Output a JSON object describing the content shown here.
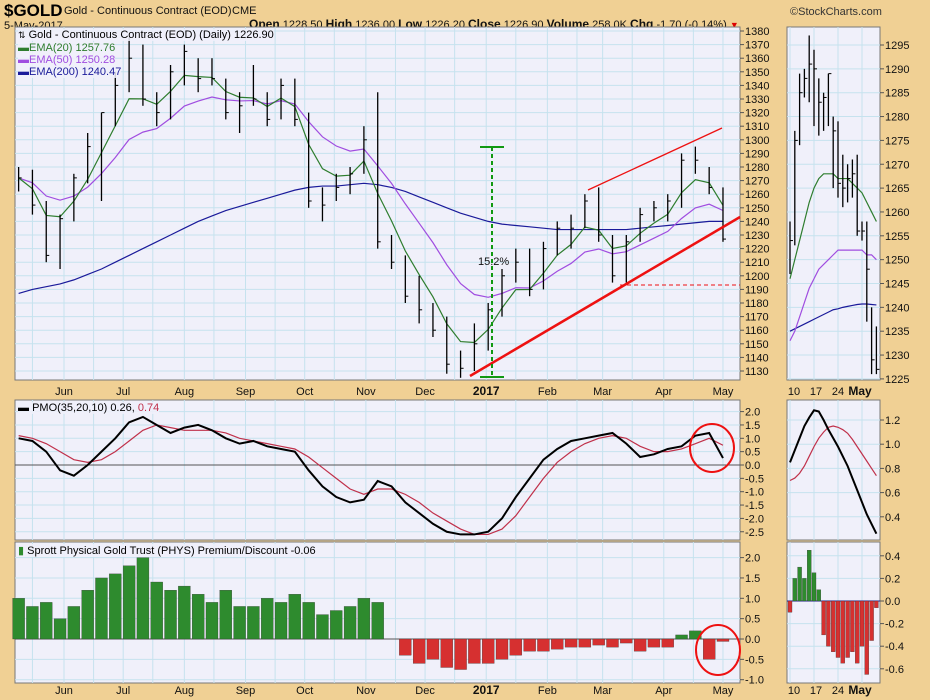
{
  "header": {
    "symbol": "$GOLD",
    "name": "Gold - Continuous Contract (EOD)",
    "exchange": "CME",
    "date": "5-May-2017",
    "brand": "©StockCharts.com",
    "open_label": "Open",
    "open": "1228.50",
    "high_label": "High",
    "high": "1236.00",
    "low_label": "Low",
    "low": "1226.20",
    "close_label": "Close",
    "close": "1226.90",
    "volume_label": "Volume",
    "volume": "258.0K",
    "chg_label": "Chg",
    "chg": "-1.70 (-0.14%)",
    "chg_icon": "triangle-down-icon"
  },
  "colors": {
    "bg": "#f0d094",
    "panel": "#f0f0fa",
    "grid": "#c6e2ee",
    "price": "#000000",
    "ema20": "#2e7d2e",
    "ema50": "#a04de0",
    "ema200": "#1a1a9a",
    "pmo": "#000000",
    "signal": "#c0304a",
    "pos": "#2e8b2e",
    "neg": "#d63030",
    "annot_red": "#ee1111",
    "annot_green": "#119911"
  },
  "legend": {
    "price": "Gold - Continuous Contract (EOD) (Daily) 1226.90",
    "ema20": "EMA(20) 1257.76",
    "ema50": "EMA(50) 1250.28",
    "ema200": "EMA(200) 1240.47",
    "pmo": "PMO(35,20,10) 0.26,",
    "pmo_signal": "0.74",
    "premium": "Sprott Physical Gold Trust (PHYS) Premium/Discount -0.06"
  },
  "annotations": {
    "rally_pct": "15.2%"
  },
  "x_labels": {
    "months": [
      "Jun",
      "Jul",
      "Aug",
      "Sep",
      "Oct",
      "Nov",
      "Dec",
      "2017",
      "Feb",
      "Mar",
      "Apr",
      "May"
    ],
    "mini": [
      "10",
      "17",
      "24",
      "May"
    ]
  },
  "chart_data": [
    {
      "type": "ohlc",
      "title": "Gold - Continuous Contract (EOD) (Daily)",
      "ylim": [
        1125,
        1382
      ],
      "yticks_step": 10,
      "grid": true,
      "legend": "top-left",
      "dates": [
        "2016-05-09",
        "2016-05-16",
        "2016-05-23",
        "2016-05-30",
        "2016-06-06",
        "2016-06-13",
        "2016-06-20",
        "2016-06-27",
        "2016-07-04",
        "2016-07-11",
        "2016-07-18",
        "2016-07-25",
        "2016-08-01",
        "2016-08-08",
        "2016-08-15",
        "2016-08-22",
        "2016-08-29",
        "2016-09-05",
        "2016-09-12",
        "2016-09-19",
        "2016-09-26",
        "2016-10-03",
        "2016-10-10",
        "2016-10-17",
        "2016-10-24",
        "2016-10-31",
        "2016-11-07",
        "2016-11-14",
        "2016-11-21",
        "2016-11-28",
        "2016-12-05",
        "2016-12-12",
        "2016-12-19",
        "2016-12-26",
        "2017-01-02",
        "2017-01-09",
        "2017-01-16",
        "2017-01-23",
        "2017-01-30",
        "2017-02-06",
        "2017-02-13",
        "2017-02-20",
        "2017-02-27",
        "2017-03-06",
        "2017-03-13",
        "2017-03-20",
        "2017-03-27",
        "2017-04-03",
        "2017-04-10",
        "2017-04-17",
        "2017-04-24",
        "2017-05-01"
      ],
      "high": [
        1280,
        1278,
        1255,
        1245,
        1275,
        1305,
        1320,
        1350,
        1375,
        1370,
        1335,
        1355,
        1370,
        1360,
        1360,
        1345,
        1335,
        1355,
        1335,
        1345,
        1345,
        1320,
        1265,
        1275,
        1280,
        1310,
        1335,
        1230,
        1215,
        1200,
        1180,
        1170,
        1145,
        1165,
        1180,
        1205,
        1220,
        1220,
        1225,
        1240,
        1245,
        1260,
        1265,
        1230,
        1230,
        1250,
        1255,
        1260,
        1290,
        1295,
        1280,
        1265
      ],
      "low": [
        1262,
        1245,
        1210,
        1205,
        1240,
        1268,
        1255,
        1310,
        1335,
        1325,
        1310,
        1315,
        1340,
        1335,
        1340,
        1315,
        1305,
        1325,
        1310,
        1315,
        1310,
        1250,
        1240,
        1255,
        1260,
        1275,
        1220,
        1205,
        1180,
        1165,
        1155,
        1128,
        1125,
        1130,
        1145,
        1170,
        1195,
        1185,
        1190,
        1215,
        1220,
        1235,
        1225,
        1195,
        1195,
        1225,
        1240,
        1240,
        1250,
        1275,
        1260,
        1225
      ],
      "close": [
        1272,
        1252,
        1215,
        1242,
        1272,
        1295,
        1320,
        1340,
        1360,
        1330,
        1320,
        1350,
        1365,
        1345,
        1345,
        1320,
        1325,
        1330,
        1315,
        1340,
        1315,
        1255,
        1252,
        1265,
        1275,
        1300,
        1225,
        1210,
        1185,
        1175,
        1160,
        1135,
        1132,
        1150,
        1175,
        1200,
        1210,
        1190,
        1220,
        1235,
        1235,
        1255,
        1230,
        1200,
        1225,
        1245,
        1250,
        1255,
        1285,
        1285,
        1265,
        1227
      ],
      "ema200": [
        1187,
        1190,
        1192,
        1194,
        1197,
        1201,
        1205,
        1210,
        1215,
        1220,
        1225,
        1230,
        1235,
        1240,
        1244,
        1248,
        1251,
        1254,
        1257,
        1260,
        1263,
        1265,
        1266,
        1266,
        1267,
        1268,
        1267,
        1265,
        1262,
        1258,
        1254,
        1250,
        1246,
        1243,
        1240,
        1238,
        1237,
        1236,
        1235,
        1234,
        1234,
        1234,
        1234,
        1234,
        1234,
        1235,
        1236,
        1237,
        1238,
        1239,
        1240,
        1240
      ]
    },
    {
      "type": "line",
      "title": "PMO(35,20,10)",
      "ylim": [
        -2.8,
        2.3
      ],
      "grid": true,
      "pmo": [
        1.0,
        0.9,
        0.5,
        -0.2,
        -0.4,
        0.0,
        0.5,
        1.0,
        1.6,
        1.8,
        1.5,
        1.2,
        1.4,
        1.5,
        1.3,
        1.0,
        0.8,
        0.9,
        0.7,
        0.6,
        0.5,
        -0.2,
        -0.8,
        -1.2,
        -1.4,
        -1.3,
        -0.6,
        -0.8,
        -1.4,
        -1.8,
        -2.2,
        -2.5,
        -2.6,
        -2.6,
        -2.5,
        -2.0,
        -1.2,
        -0.5,
        0.2,
        0.6,
        0.9,
        1.0,
        1.1,
        1.2,
        0.8,
        0.3,
        0.4,
        0.6,
        0.7,
        1.1,
        1.2,
        0.26
      ],
      "signal": [
        1.1,
        1.0,
        0.8,
        0.5,
        0.2,
        0.1,
        0.2,
        0.5,
        0.9,
        1.3,
        1.5,
        1.4,
        1.3,
        1.3,
        1.3,
        1.2,
        1.0,
        0.9,
        0.8,
        0.7,
        0.6,
        0.3,
        -0.1,
        -0.5,
        -0.9,
        -1.1,
        -0.9,
        -0.9,
        -1.1,
        -1.4,
        -1.8,
        -2.1,
        -2.4,
        -2.6,
        -2.6,
        -2.4,
        -1.9,
        -1.2,
        -0.5,
        0.1,
        0.5,
        0.8,
        1.0,
        1.1,
        1.0,
        0.7,
        0.5,
        0.5,
        0.6,
        0.8,
        1.0,
        0.74
      ]
    },
    {
      "type": "bar",
      "title": "Sprott Physical Gold Trust (PHYS) Premium/Discount",
      "ylim": [
        -1.05,
        2.3
      ],
      "grid": true,
      "values": [
        1.0,
        0.8,
        0.9,
        0.5,
        0.8,
        1.2,
        1.5,
        1.6,
        1.8,
        2.0,
        1.4,
        1.2,
        1.3,
        1.1,
        0.9,
        1.2,
        0.8,
        0.8,
        1.0,
        0.9,
        1.1,
        0.9,
        0.6,
        0.7,
        0.8,
        1.0,
        0.9,
        0.0,
        -0.4,
        -0.6,
        -0.5,
        -0.7,
        -0.75,
        -0.6,
        -0.6,
        -0.5,
        -0.4,
        -0.3,
        -0.3,
        -0.25,
        -0.2,
        -0.2,
        -0.15,
        -0.2,
        -0.1,
        -0.3,
        -0.2,
        -0.2,
        0.1,
        0.2,
        -0.5,
        -0.06
      ]
    },
    {
      "type": "ohlc",
      "title": "detail",
      "ylim": [
        1224,
        1298
      ],
      "dates": [
        "2017-04-10",
        "2017-04-11",
        "2017-04-12",
        "2017-04-13",
        "2017-04-17",
        "2017-04-18",
        "2017-04-19",
        "2017-04-20",
        "2017-04-21",
        "2017-04-24",
        "2017-04-25",
        "2017-04-26",
        "2017-04-27",
        "2017-04-28",
        "2017-05-01",
        "2017-05-02",
        "2017-05-03",
        "2017-05-04",
        "2017-05-05"
      ],
      "high": [
        1258,
        1277,
        1289,
        1290,
        1297,
        1294,
        1288,
        1285,
        1289,
        1280,
        1279,
        1272,
        1270,
        1271,
        1272,
        1258,
        1258,
        1240,
        1236
      ],
      "low": [
        1247,
        1253,
        1274,
        1284,
        1283,
        1278,
        1276,
        1277,
        1278,
        1265,
        1263,
        1261,
        1262,
        1263,
        1255,
        1254,
        1237,
        1226,
        1226
      ],
      "close": [
        1254,
        1275,
        1285,
        1288,
        1291,
        1290,
        1283,
        1284,
        1289,
        1277,
        1266,
        1265,
        1267,
        1268,
        1256,
        1256,
        1248,
        1229,
        1227
      ],
      "ema20": [
        1246,
        1250,
        1254,
        1258,
        1262,
        1265,
        1267,
        1268,
        1268,
        1268,
        1267,
        1267,
        1267,
        1266,
        1265,
        1264,
        1262,
        1260,
        1258
      ],
      "ema50": [
        1233,
        1235,
        1238,
        1241,
        1244,
        1246,
        1248,
        1249,
        1250,
        1251,
        1252,
        1252,
        1252,
        1252,
        1252,
        1252,
        1251,
        1251,
        1250
      ],
      "ema200": [
        1235,
        1235.5,
        1236,
        1236.5,
        1237,
        1237.5,
        1238,
        1238.5,
        1239,
        1239.5,
        1239.7,
        1240,
        1240.2,
        1240.4,
        1240.6,
        1240.7,
        1240.7,
        1240.6,
        1240.5
      ],
      "pmo": [
        0.85,
        0.95,
        1.05,
        1.15,
        1.22,
        1.28,
        1.27,
        1.2,
        1.12,
        1.05,
        0.98,
        0.9,
        0.82,
        0.72,
        0.62,
        0.52,
        0.42,
        0.34,
        0.26
      ],
      "signal": [
        0.7,
        0.72,
        0.76,
        0.82,
        0.9,
        0.98,
        1.05,
        1.1,
        1.14,
        1.15,
        1.14,
        1.12,
        1.09,
        1.04,
        0.98,
        0.92,
        0.86,
        0.8,
        0.74
      ],
      "premium": [
        -0.1,
        0.2,
        0.3,
        0.2,
        0.45,
        0.25,
        0.1,
        -0.3,
        -0.4,
        -0.45,
        -0.5,
        -0.55,
        -0.5,
        -0.45,
        -0.55,
        -0.4,
        -0.65,
        -0.35,
        -0.06
      ]
    }
  ]
}
